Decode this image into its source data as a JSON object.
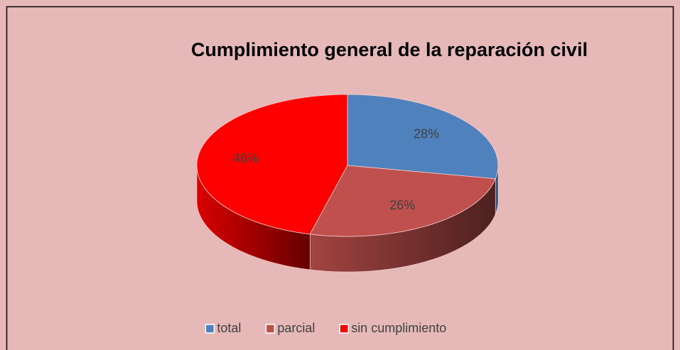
{
  "chart_data": {
    "type": "pie",
    "title": "Cumplimiento general de la reparación civil",
    "categories": [
      "total",
      "parcial",
      "sin cumplimiento"
    ],
    "values": [
      28,
      26,
      46
    ],
    "value_labels": [
      "28%",
      "26%",
      "46%"
    ],
    "colors": [
      "#4f81bd",
      "#c0504d",
      "#ff0000"
    ],
    "legend": "bottom"
  }
}
